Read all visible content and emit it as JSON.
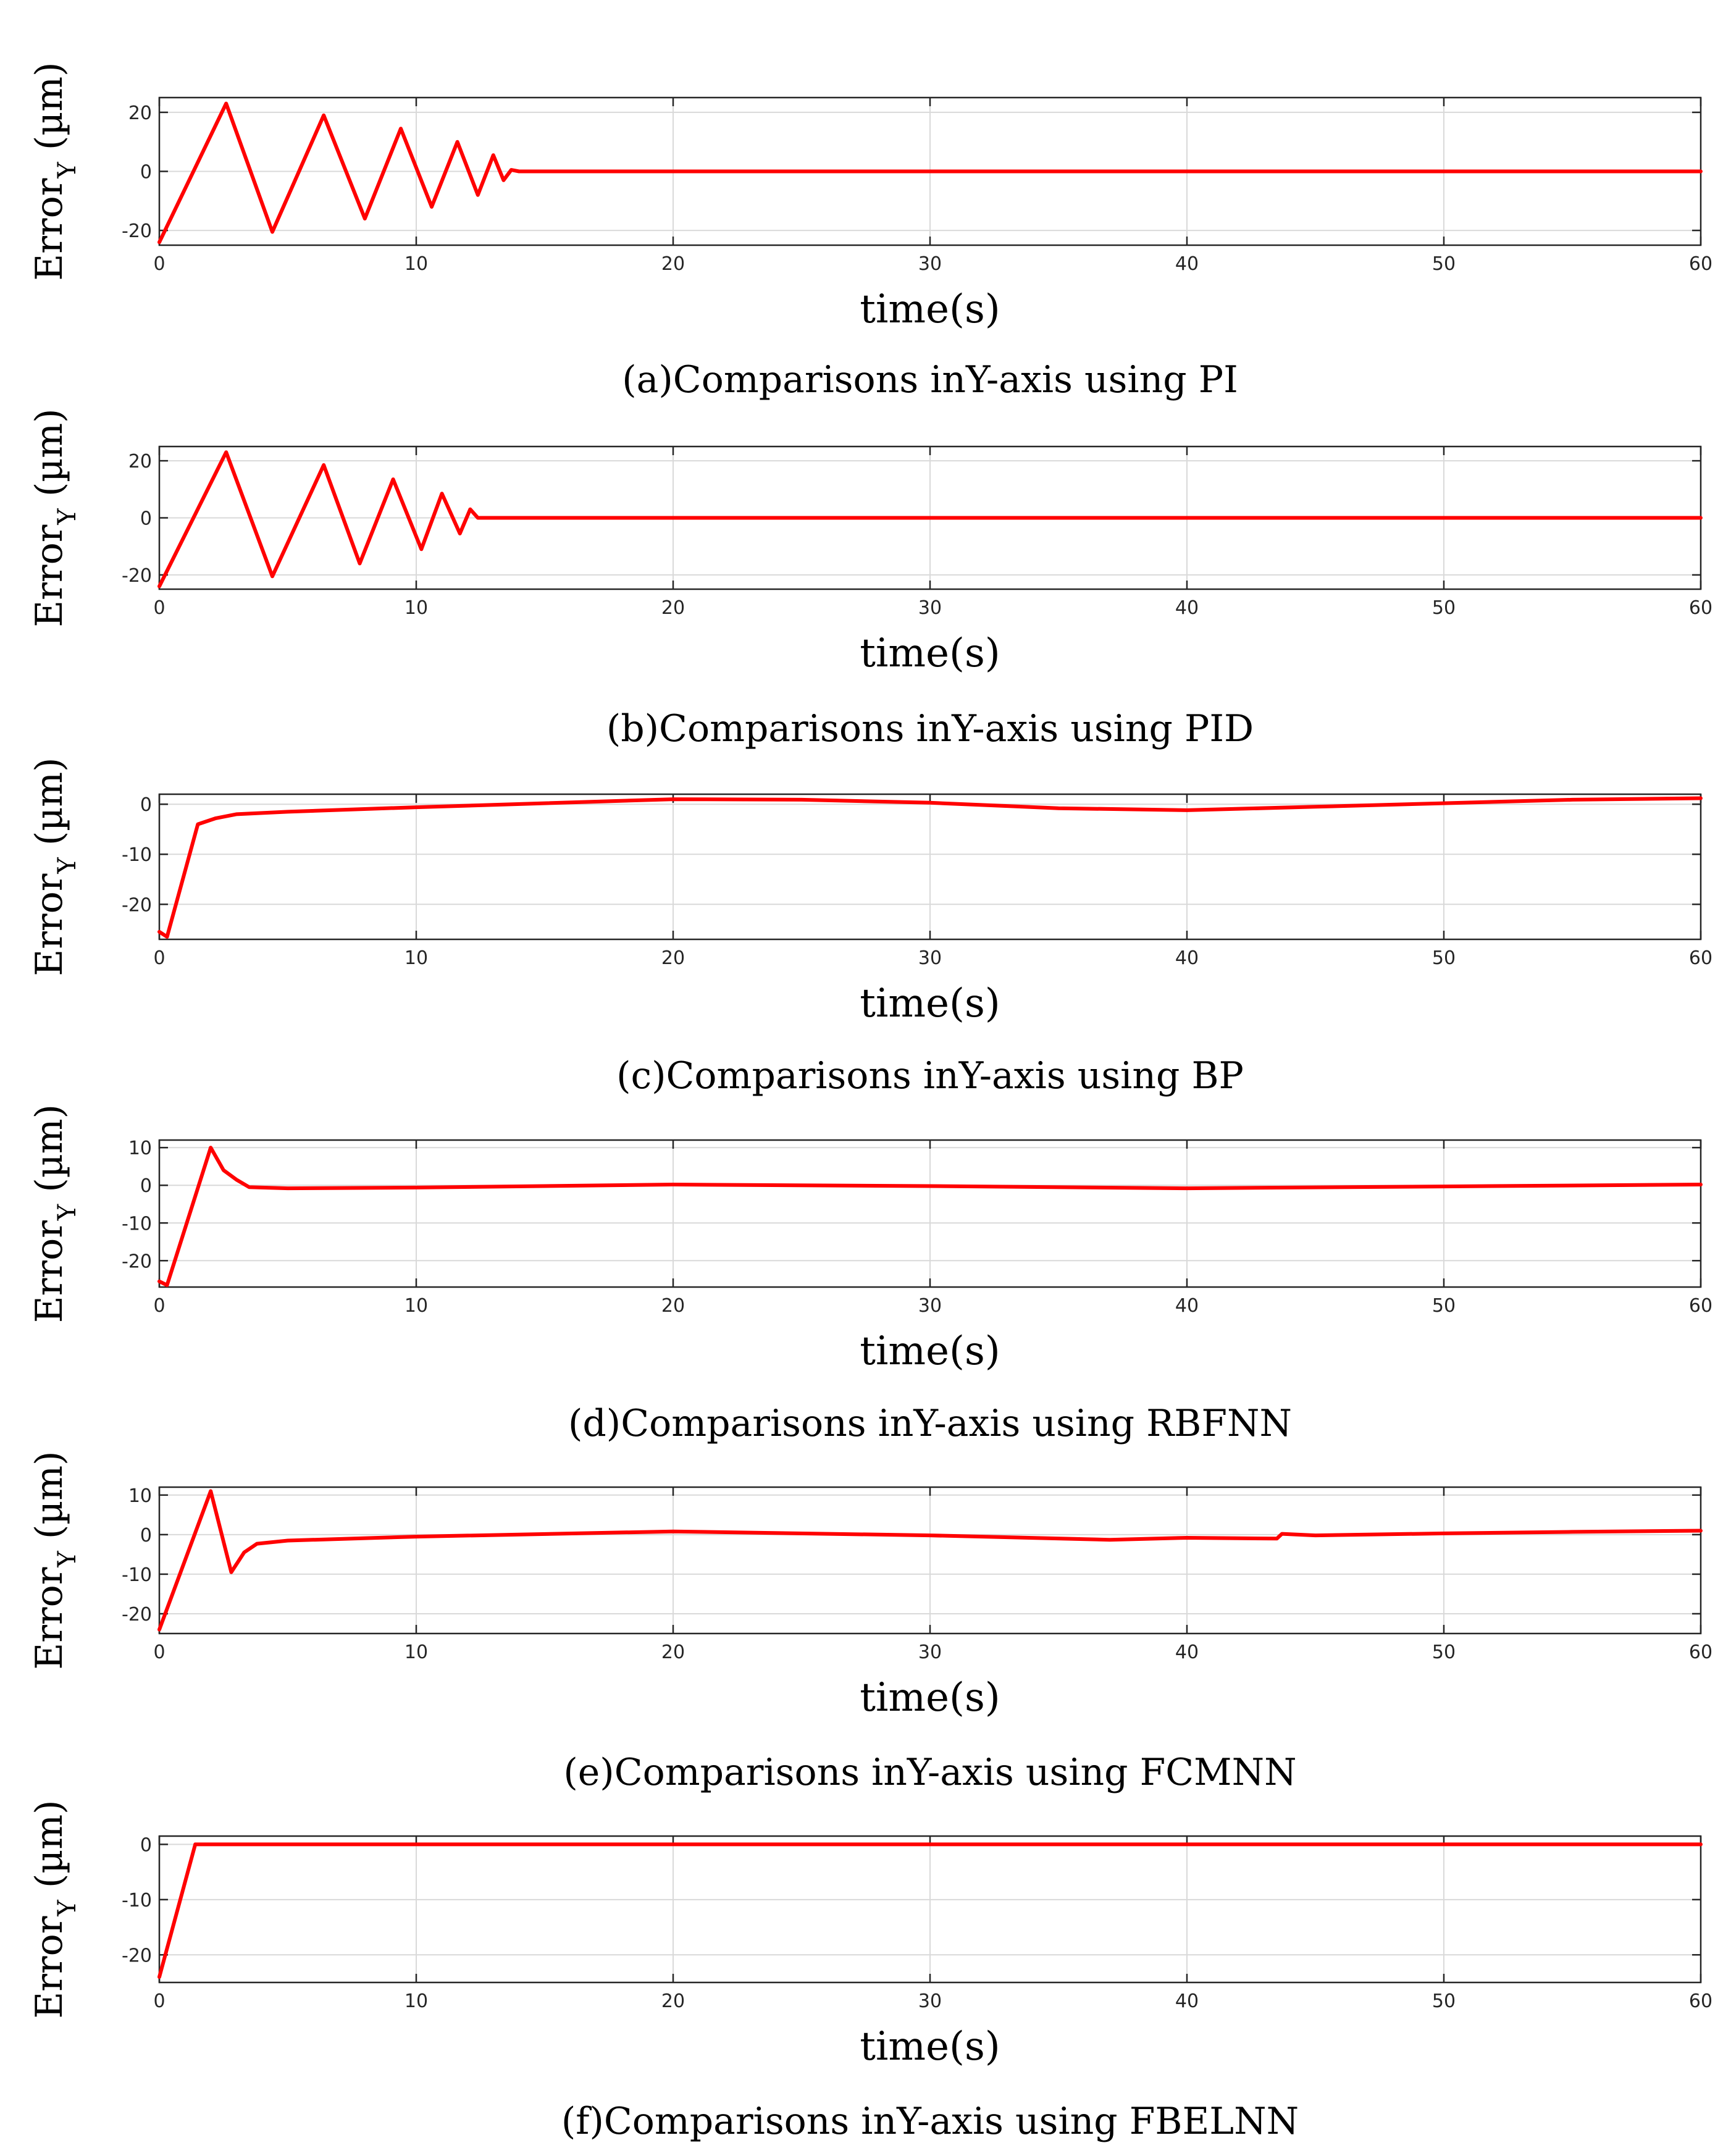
{
  "line_color": "#ff0000",
  "chart_data": [
    {
      "id": "a",
      "type": "line",
      "caption": "(a)Comparisons inY-axis using PI",
      "xlabel": "time(s)",
      "ylabel_main": "Error",
      "ylabel_sub": "Y",
      "ylabel_unit": " (µm)",
      "xlim": [
        0,
        60
      ],
      "ylim": [
        -25,
        25
      ],
      "xticks": [
        0,
        10,
        20,
        30,
        40,
        50,
        60
      ],
      "yticks": [
        -20,
        0,
        20
      ],
      "grid": true,
      "series": [
        {
          "name": "Error Y",
          "x": [
            0,
            2.6,
            4.4,
            6.4,
            8,
            9.4,
            10.6,
            11.6,
            12.4,
            13,
            13.4,
            13.7,
            14,
            60
          ],
          "y": [
            -24,
            23,
            -20.5,
            19,
            -16,
            14.5,
            -12,
            10,
            -8,
            5.5,
            -3,
            0.5,
            0,
            0
          ]
        }
      ]
    },
    {
      "id": "b",
      "type": "line",
      "caption": "(b)Comparisons inY-axis using PID",
      "xlabel": "time(s)",
      "ylabel_main": "Error",
      "ylabel_sub": "Y",
      "ylabel_unit": " (µm)",
      "xlim": [
        0,
        60
      ],
      "ylim": [
        -25,
        25
      ],
      "xticks": [
        0,
        10,
        20,
        30,
        40,
        50,
        60
      ],
      "yticks": [
        -20,
        0,
        20
      ],
      "grid": true,
      "series": [
        {
          "name": "Error Y",
          "x": [
            0,
            2.6,
            4.4,
            6.4,
            7.8,
            9.1,
            10.2,
            11,
            11.7,
            12.1,
            12.4,
            60
          ],
          "y": [
            -24,
            23,
            -20.5,
            18.5,
            -16,
            13.5,
            -11,
            8.5,
            -5.5,
            3,
            0,
            0
          ]
        }
      ]
    },
    {
      "id": "c",
      "type": "line",
      "caption": "(c)Comparisons inY-axis using BP",
      "xlabel": "time(s)",
      "ylabel_main": "Error",
      "ylabel_sub": "Y",
      "ylabel_unit": " (µm)",
      "xlim": [
        0,
        60
      ],
      "ylim": [
        -27,
        2
      ],
      "xticks": [
        0,
        10,
        20,
        30,
        40,
        50,
        60
      ],
      "yticks": [
        -20,
        -10,
        0
      ],
      "grid": true,
      "series": [
        {
          "name": "Error Y",
          "x": [
            0,
            0.3,
            1.5,
            2.2,
            3,
            5,
            10,
            15,
            20,
            25,
            30,
            35,
            40,
            45,
            50,
            55,
            60
          ],
          "y": [
            -25.5,
            -26.5,
            -4,
            -2.8,
            -2,
            -1.5,
            -0.6,
            0.2,
            1,
            0.9,
            0.3,
            -0.8,
            -1.2,
            -0.5,
            0.2,
            0.9,
            1.2
          ]
        }
      ]
    },
    {
      "id": "d",
      "type": "line",
      "caption": "(d)Comparisons inY-axis using RBFNN",
      "xlabel": "time(s)",
      "ylabel_main": "Error",
      "ylabel_sub": "Y",
      "ylabel_unit": " (µm)",
      "xlim": [
        0,
        60
      ],
      "ylim": [
        -27,
        12
      ],
      "xticks": [
        0,
        10,
        20,
        30,
        40,
        50,
        60
      ],
      "yticks": [
        -20,
        -10,
        0,
        10
      ],
      "grid": true,
      "series": [
        {
          "name": "Error Y",
          "x": [
            0,
            0.3,
            2,
            2.5,
            3,
            3.5,
            5,
            10,
            20,
            30,
            40,
            50,
            60
          ],
          "y": [
            -25.5,
            -26.5,
            10,
            4,
            1.5,
            -0.5,
            -0.8,
            -0.6,
            0.2,
            -0.2,
            -0.8,
            -0.3,
            0.2
          ]
        }
      ]
    },
    {
      "id": "e",
      "type": "line",
      "caption": "(e)Comparisons inY-axis using FCMNN",
      "xlabel": "time(s)",
      "ylabel_main": "Error",
      "ylabel_sub": "Y",
      "ylabel_unit": " (µm)",
      "xlim": [
        0,
        60
      ],
      "ylim": [
        -25,
        12
      ],
      "xticks": [
        0,
        10,
        20,
        30,
        40,
        50,
        60
      ],
      "yticks": [
        -20,
        -10,
        0,
        10
      ],
      "grid": true,
      "series": [
        {
          "name": "Error Y",
          "x": [
            0,
            2,
            2.8,
            3.3,
            3.8,
            5,
            10,
            20,
            30,
            37,
            40,
            43.5,
            43.7,
            45,
            50,
            55,
            60
          ],
          "y": [
            -24,
            11,
            -9.5,
            -4.5,
            -2.3,
            -1.5,
            -0.5,
            0.8,
            -0.2,
            -1.3,
            -0.8,
            -1,
            0.2,
            -0.2,
            0.3,
            0.7,
            1
          ]
        }
      ]
    },
    {
      "id": "f",
      "type": "line",
      "caption": "(f)Comparisons inY-axis using FBELNN",
      "xlabel": "time(s)",
      "ylabel_main": "Error",
      "ylabel_sub": "Y",
      "ylabel_unit": " (µm)",
      "xlim": [
        0,
        60
      ],
      "ylim": [
        -25,
        1.5
      ],
      "xticks": [
        0,
        10,
        20,
        30,
        40,
        50,
        60
      ],
      "yticks": [
        -20,
        -10,
        0
      ],
      "grid": true,
      "series": [
        {
          "name": "Error Y",
          "x": [
            0,
            1.4,
            60
          ],
          "y": [
            -24,
            0,
            0
          ]
        }
      ]
    }
  ]
}
